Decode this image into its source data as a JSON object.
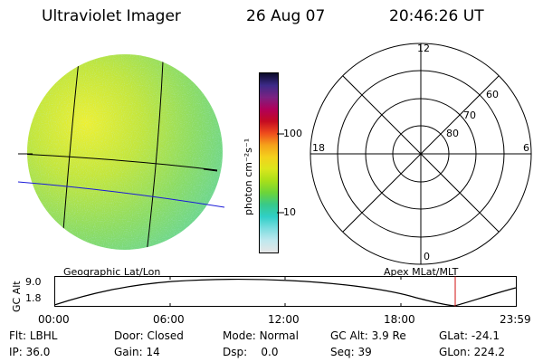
{
  "header": {
    "instrument": "Ultraviolet Imager",
    "date": "26 Aug 07",
    "time": "20:46:26 UT"
  },
  "colorbar": {
    "label": "photon cm⁻²s⁻¹",
    "ticks": [
      "100",
      "10"
    ],
    "colors": [
      "#e6e6e6",
      "#bfe8ee",
      "#7ddde0",
      "#2fcfc7",
      "#38c98a",
      "#6cd43a",
      "#a8df1a",
      "#dce61c",
      "#f4d11c",
      "#f5a11a",
      "#ee4a1c",
      "#c40a22",
      "#b0005a",
      "#7a2282",
      "#3c2a88",
      "#0b0b2a"
    ]
  },
  "polar_plot": {
    "labels": {
      "top": "12",
      "left": "18",
      "right": "6",
      "bottom": "0"
    },
    "rings": [
      "60",
      "70",
      "80"
    ]
  },
  "captions": {
    "left": "Geographic Lat/Lon",
    "right": "Apex MLat/MLT"
  },
  "altitude_plot": {
    "ylabel": "GC Alt",
    "ytick_top": "9.0",
    "ytick_bottom": "1.8",
    "xticks": [
      "00:00",
      "06:00",
      "12:00",
      "18:00",
      "23:59"
    ]
  },
  "status": {
    "row1": [
      {
        "label": "Flt:",
        "value": "LBHL"
      },
      {
        "label": "Door:",
        "value": "Closed"
      },
      {
        "label": "Mode:",
        "value": "Normal"
      },
      {
        "label": "GC Alt:",
        "value": "3.9 Re"
      },
      {
        "label": "GLat:",
        "value": "-24.1"
      }
    ],
    "row2": [
      {
        "label": "IP:",
        "value": "36.0"
      },
      {
        "label": "Gain:",
        "value": "14"
      },
      {
        "label": "Dsp:",
        "value": "0.0"
      },
      {
        "label": "Seq:",
        "value": "39"
      },
      {
        "label": "GLon:",
        "value": "224.2"
      }
    ]
  },
  "colors": {
    "disk_low": "#7ee08a",
    "disk_mid": "#a6e25c",
    "disk_high": "#e3ee3c",
    "grid_black": "#000000",
    "grid_blue": "#1b1bd8",
    "marker_red": "#d01010"
  }
}
